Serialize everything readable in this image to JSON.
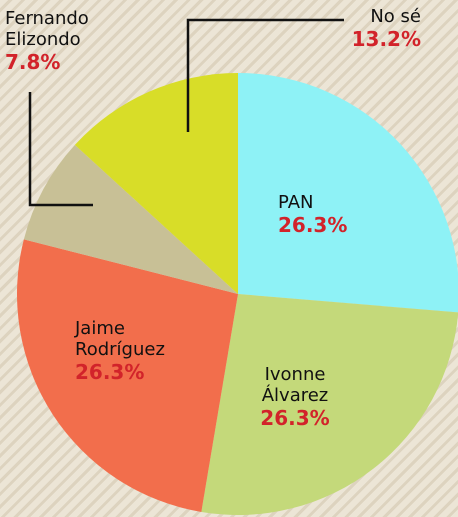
{
  "chart_data": {
    "type": "pie",
    "categories": [
      "PAN",
      "Ivonne Álvarez",
      "Jaime Rodríguez",
      "Fernando Elizondo",
      "No sé"
    ],
    "values": [
      26.3,
      26.3,
      26.3,
      7.8,
      13.2
    ],
    "value_labels": [
      "26.3%",
      "26.3%",
      "26.3%",
      "7.8%",
      "13.2%"
    ],
    "colors": [
      "#8ef2f6",
      "#c4d97a",
      "#f26e4c",
      "#c8c096",
      "#d8dd28"
    ]
  }
}
